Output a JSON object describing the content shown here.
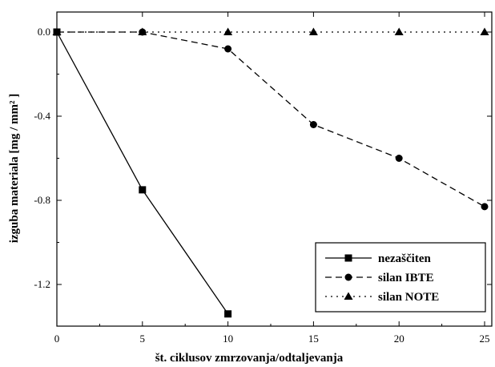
{
  "chart_data": {
    "type": "line",
    "title": "",
    "xlabel": "št. ciklusov zmrzovanja/odtaljevanja",
    "ylabel": "izguba materiala [mg / mm² ]",
    "xlim": [
      0,
      26
    ],
    "ylim": [
      -1.4,
      0.1
    ],
    "xticks": [
      0,
      5,
      10,
      15,
      20,
      25
    ],
    "yticks": [
      0.0,
      -0.4,
      -0.8,
      -1.2
    ],
    "xtick_labels": [
      "0",
      "5",
      "10",
      "15",
      "20",
      "25"
    ],
    "ytick_labels": [
      "0.0",
      "-0.4",
      "-0.8",
      "-1.2"
    ],
    "grid": false,
    "legend_position": "bottom-right",
    "series": [
      {
        "name": "nezaščiten",
        "line_style": "solid",
        "marker": "square",
        "x": [
          0,
          5,
          10
        ],
        "y": [
          0.0,
          -0.75,
          -1.34
        ]
      },
      {
        "name": "silan IBTE",
        "line_style": "dashed",
        "marker": "circle",
        "x": [
          0,
          5,
          10,
          15,
          20,
          25
        ],
        "y": [
          0.0,
          0.0,
          -0.08,
          -0.44,
          -0.6,
          -0.83
        ]
      },
      {
        "name": "silan NOTE",
        "line_style": "dotted",
        "marker": "triangle",
        "x": [
          0,
          5,
          10,
          15,
          20,
          25
        ],
        "y": [
          0.0,
          0.0,
          0.0,
          0.0,
          0.0,
          0.0
        ]
      }
    ]
  }
}
